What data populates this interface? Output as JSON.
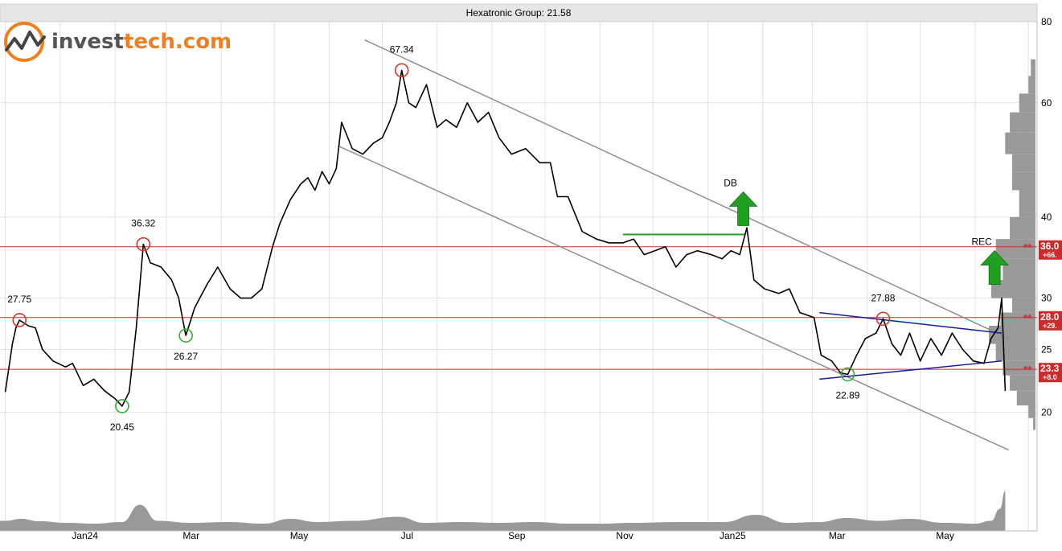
{
  "chart_data": {
    "type": "line",
    "title": "Hexatronic Group: 21.58",
    "brand": {
      "prefix": "invest",
      "suffix": "tech.com"
    },
    "x_axis": {
      "ticks": [
        "Jan24",
        "Mar",
        "May",
        "Jul",
        "Sep",
        "Nov",
        "Jan25",
        "Mar",
        "May"
      ]
    },
    "y_axis": {
      "scale": "log",
      "ylim": [
        18.5,
        80
      ],
      "ticks": [
        20,
        25,
        30,
        40,
        60,
        80
      ]
    },
    "price_series": {
      "name": "Hexatronic Group",
      "points": [
        [
          "2023-12-01",
          21.5
        ],
        [
          "2023-12-05",
          25.5
        ],
        [
          "2023-12-07",
          27.0
        ],
        [
          "2023-12-09",
          27.75
        ],
        [
          "2023-12-14",
          27.2
        ],
        [
          "2023-12-18",
          27.0
        ],
        [
          "2023-12-22",
          25.0
        ],
        [
          "2023-12-28",
          24.0
        ],
        [
          "2024-01-04",
          23.5
        ],
        [
          "2024-01-08",
          23.8
        ],
        [
          "2024-01-14",
          22.0
        ],
        [
          "2024-01-20",
          22.5
        ],
        [
          "2024-01-26",
          21.6
        ],
        [
          "2024-02-01",
          21.0
        ],
        [
          "2024-02-05",
          20.45
        ],
        [
          "2024-02-09",
          21.5
        ],
        [
          "2024-02-13",
          27.0
        ],
        [
          "2024-02-17",
          36.32
        ],
        [
          "2024-02-21",
          34.0
        ],
        [
          "2024-02-27",
          33.5
        ],
        [
          "2024-03-04",
          32.0
        ],
        [
          "2024-03-08",
          30.0
        ],
        [
          "2024-03-12",
          26.27
        ],
        [
          "2024-03-17",
          29.0
        ],
        [
          "2024-03-24",
          31.5
        ],
        [
          "2024-03-30",
          33.5
        ],
        [
          "2024-04-06",
          31.0
        ],
        [
          "2024-04-12",
          30.0
        ],
        [
          "2024-04-18",
          30.0
        ],
        [
          "2024-04-24",
          31.0
        ],
        [
          "2024-04-30",
          36.0
        ],
        [
          "2024-05-04",
          39.0
        ],
        [
          "2024-05-10",
          42.5
        ],
        [
          "2024-05-16",
          45.0
        ],
        [
          "2024-05-20",
          46.0
        ],
        [
          "2024-05-24",
          44.0
        ],
        [
          "2024-05-28",
          47.0
        ],
        [
          "2024-06-01",
          45.0
        ],
        [
          "2024-06-05",
          47.5
        ],
        [
          "2024-06-08",
          56.0
        ],
        [
          "2024-06-14",
          51.0
        ],
        [
          "2024-06-20",
          50.0
        ],
        [
          "2024-06-26",
          52.0
        ],
        [
          "2024-07-01",
          53.0
        ],
        [
          "2024-07-05",
          56.0
        ],
        [
          "2024-07-09",
          60.0
        ],
        [
          "2024-07-12",
          67.34
        ],
        [
          "2024-07-16",
          60.0
        ],
        [
          "2024-07-20",
          59.0
        ],
        [
          "2024-07-26",
          64.0
        ],
        [
          "2024-08-01",
          55.0
        ],
        [
          "2024-08-06",
          56.5
        ],
        [
          "2024-08-12",
          55.0
        ],
        [
          "2024-08-18",
          60.0
        ],
        [
          "2024-08-24",
          56.0
        ],
        [
          "2024-08-30",
          58.0
        ],
        [
          "2024-09-05",
          53.0
        ],
        [
          "2024-09-12",
          50.0
        ],
        [
          "2024-09-20",
          51.0
        ],
        [
          "2024-09-28",
          48.5
        ],
        [
          "2024-10-04",
          48.5
        ],
        [
          "2024-10-08",
          43.0
        ],
        [
          "2024-10-14",
          43.0
        ],
        [
          "2024-10-22",
          38.0
        ],
        [
          "2024-10-30",
          37.0
        ],
        [
          "2024-11-06",
          36.5
        ],
        [
          "2024-11-14",
          36.5
        ],
        [
          "2024-11-20",
          37.0
        ],
        [
          "2024-11-26",
          35.0
        ],
        [
          "2024-12-02",
          35.5
        ],
        [
          "2024-12-08",
          36.0
        ],
        [
          "2024-12-14",
          33.5
        ],
        [
          "2024-12-20",
          35.0
        ],
        [
          "2024-12-26",
          35.5
        ],
        [
          "2025-01-03",
          35.0
        ],
        [
          "2025-01-09",
          34.5
        ],
        [
          "2025-01-14",
          35.5
        ],
        [
          "2025-01-19",
          35.0
        ],
        [
          "2025-01-23",
          38.5
        ],
        [
          "2025-01-27",
          32.0
        ],
        [
          "2025-02-02",
          31.0
        ],
        [
          "2025-02-10",
          30.5
        ],
        [
          "2025-02-16",
          31.0
        ],
        [
          "2025-02-22",
          28.5
        ],
        [
          "2025-03-02",
          28.0
        ],
        [
          "2025-03-06",
          24.5
        ],
        [
          "2025-03-12",
          24.0
        ],
        [
          "2025-03-17",
          23.0
        ],
        [
          "2025-03-21",
          22.89
        ],
        [
          "2025-03-26",
          24.5
        ],
        [
          "2025-03-31",
          26.0
        ],
        [
          "2025-04-06",
          26.5
        ],
        [
          "2025-04-10",
          27.88
        ],
        [
          "2025-04-15",
          25.5
        ],
        [
          "2025-04-20",
          24.5
        ],
        [
          "2025-04-25",
          26.5
        ],
        [
          "2025-05-01",
          24.0
        ],
        [
          "2025-05-07",
          26.0
        ],
        [
          "2025-05-13",
          24.5
        ],
        [
          "2025-05-19",
          26.5
        ],
        [
          "2025-05-25",
          25.0
        ],
        [
          "2025-05-31",
          24.0
        ],
        [
          "2025-06-06",
          23.8
        ],
        [
          "2025-06-10",
          26.0
        ],
        [
          "2025-06-14",
          27.0
        ],
        [
          "2025-06-16",
          30.0
        ],
        [
          "2025-06-18",
          21.58
        ]
      ]
    },
    "horizontal_levels": [
      {
        "value": 36.0,
        "label": "36.0",
        "change": "+66."
      },
      {
        "value": 28.0,
        "label": "28.0",
        "change": "+29."
      },
      {
        "value": 23.3,
        "label": "23.3",
        "change": "+8.0"
      }
    ],
    "level_marker": "**",
    "extrema_annotations": [
      {
        "date": "2023-12-09",
        "value": 27.75,
        "label": "27.75",
        "kind": "high"
      },
      {
        "date": "2024-02-05",
        "value": 20.45,
        "label": "20.45",
        "kind": "low"
      },
      {
        "date": "2024-02-17",
        "value": 36.32,
        "label": "36.32",
        "kind": "high"
      },
      {
        "date": "2024-03-12",
        "value": 26.27,
        "label": "26.27",
        "kind": "low"
      },
      {
        "date": "2024-07-12",
        "value": 67.34,
        "label": "67.34",
        "kind": "high"
      },
      {
        "date": "2025-03-21",
        "value": 22.89,
        "label": "22.89",
        "kind": "low"
      },
      {
        "date": "2025-04-10",
        "value": 27.88,
        "label": "27.88",
        "kind": "high"
      }
    ],
    "pattern_signals": [
      {
        "label": "DB",
        "date": "2025-01-21",
        "value": 38.8,
        "direction": "up"
      },
      {
        "label": "REC",
        "date": "2025-06-12",
        "value": 31.5,
        "direction": "up"
      }
    ],
    "trend_channel": {
      "upper": [
        [
          "2024-06-21",
          75.0
        ],
        [
          "2025-06-20",
          26.0
        ]
      ],
      "lower": [
        [
          "2024-06-06",
          51.5
        ],
        [
          "2025-06-20",
          17.5
        ]
      ]
    },
    "double_bottom_neckline": [
      [
        "2024-11-14",
        37.6
      ],
      [
        "2025-01-22",
        37.6
      ]
    ],
    "triangle_lines": {
      "upper": [
        [
          "2025-03-05",
          28.5
        ],
        [
          "2025-06-16",
          26.5
        ]
      ],
      "lower": [
        [
          "2025-03-05",
          22.5
        ],
        [
          "2025-06-16",
          24.0
        ]
      ]
    },
    "volume_profile": [
      {
        "y_from": 66.0,
        "y_to": 70.0,
        "level": 0.1
      },
      {
        "y_from": 62.0,
        "y_to": 66.0,
        "level": 0.15
      },
      {
        "y_from": 58.0,
        "y_to": 62.0,
        "level": 0.35
      },
      {
        "y_from": 54.0,
        "y_to": 58.0,
        "level": 0.55
      },
      {
        "y_from": 50.0,
        "y_to": 54.0,
        "level": 0.65
      },
      {
        "y_from": 47.0,
        "y_to": 50.0,
        "level": 0.5
      },
      {
        "y_from": 44.0,
        "y_to": 47.0,
        "level": 0.5
      },
      {
        "y_from": 40.0,
        "y_to": 44.0,
        "level": 0.35
      },
      {
        "y_from": 37.0,
        "y_to": 40.0,
        "level": 0.55
      },
      {
        "y_from": 34.5,
        "y_to": 37.0,
        "level": 0.85
      },
      {
        "y_from": 32.0,
        "y_to": 34.5,
        "level": 0.7
      },
      {
        "y_from": 30.0,
        "y_to": 32.0,
        "level": 0.95
      },
      {
        "y_from": 28.5,
        "y_to": 30.0,
        "level": 0.5
      },
      {
        "y_from": 27.2,
        "y_to": 28.5,
        "level": 0.75
      },
      {
        "y_from": 25.5,
        "y_to": 27.2,
        "level": 1.0
      },
      {
        "y_from": 24.0,
        "y_to": 25.5,
        "level": 0.85
      },
      {
        "y_from": 22.8,
        "y_to": 24.0,
        "level": 0.7
      },
      {
        "y_from": 21.6,
        "y_to": 22.8,
        "level": 0.55
      },
      {
        "y_from": 20.5,
        "y_to": 21.6,
        "level": 0.4
      },
      {
        "y_from": 19.6,
        "y_to": 20.5,
        "level": 0.15
      },
      {
        "y_from": 18.8,
        "y_to": 19.6,
        "level": 0.05
      }
    ],
    "volume_series": [
      [
        "2023-12-01",
        0.25
      ],
      [
        "2023-12-10",
        0.3
      ],
      [
        "2023-12-20",
        0.24
      ],
      [
        "2024-01-05",
        0.2
      ],
      [
        "2024-01-20",
        0.18
      ],
      [
        "2024-02-05",
        0.22
      ],
      [
        "2024-02-15",
        0.65
      ],
      [
        "2024-02-25",
        0.25
      ],
      [
        "2024-03-15",
        0.2
      ],
      [
        "2024-04-05",
        0.22
      ],
      [
        "2024-04-25",
        0.18
      ],
      [
        "2024-05-10",
        0.3
      ],
      [
        "2024-05-25",
        0.22
      ],
      [
        "2024-06-15",
        0.25
      ],
      [
        "2024-07-10",
        0.35
      ],
      [
        "2024-07-25",
        0.2
      ],
      [
        "2024-08-15",
        0.22
      ],
      [
        "2024-09-05",
        0.2
      ],
      [
        "2024-09-25",
        0.22
      ],
      [
        "2024-10-15",
        0.18
      ],
      [
        "2024-11-01",
        0.18
      ],
      [
        "2024-11-20",
        0.2
      ],
      [
        "2024-12-15",
        0.22
      ],
      [
        "2025-01-10",
        0.22
      ],
      [
        "2025-01-28",
        0.4
      ],
      [
        "2025-02-15",
        0.2
      ],
      [
        "2025-03-05",
        0.22
      ],
      [
        "2025-03-20",
        0.32
      ],
      [
        "2025-04-08",
        0.25
      ],
      [
        "2025-04-25",
        0.3
      ],
      [
        "2025-05-15",
        0.2
      ],
      [
        "2025-06-01",
        0.18
      ],
      [
        "2025-06-10",
        0.25
      ],
      [
        "2025-06-15",
        0.55
      ],
      [
        "2025-06-18",
        1.0
      ]
    ],
    "colors": {
      "price_line": "#000000",
      "level_line": "#cc2b2b",
      "level_tag": "#cc2b2b",
      "high_marker": "#d03a2a",
      "low_marker": "#35b035",
      "signal_arrow": "#20a020",
      "neckline": "#20a020",
      "triangle": "#1a1a9a",
      "channel": "#8f8f8f",
      "volume_fill": "#999999",
      "profile_fill": "#999999",
      "grid": "#e2e2e2",
      "title_bar": "#e6e6e6",
      "logo_orange": "#f07f20"
    }
  }
}
